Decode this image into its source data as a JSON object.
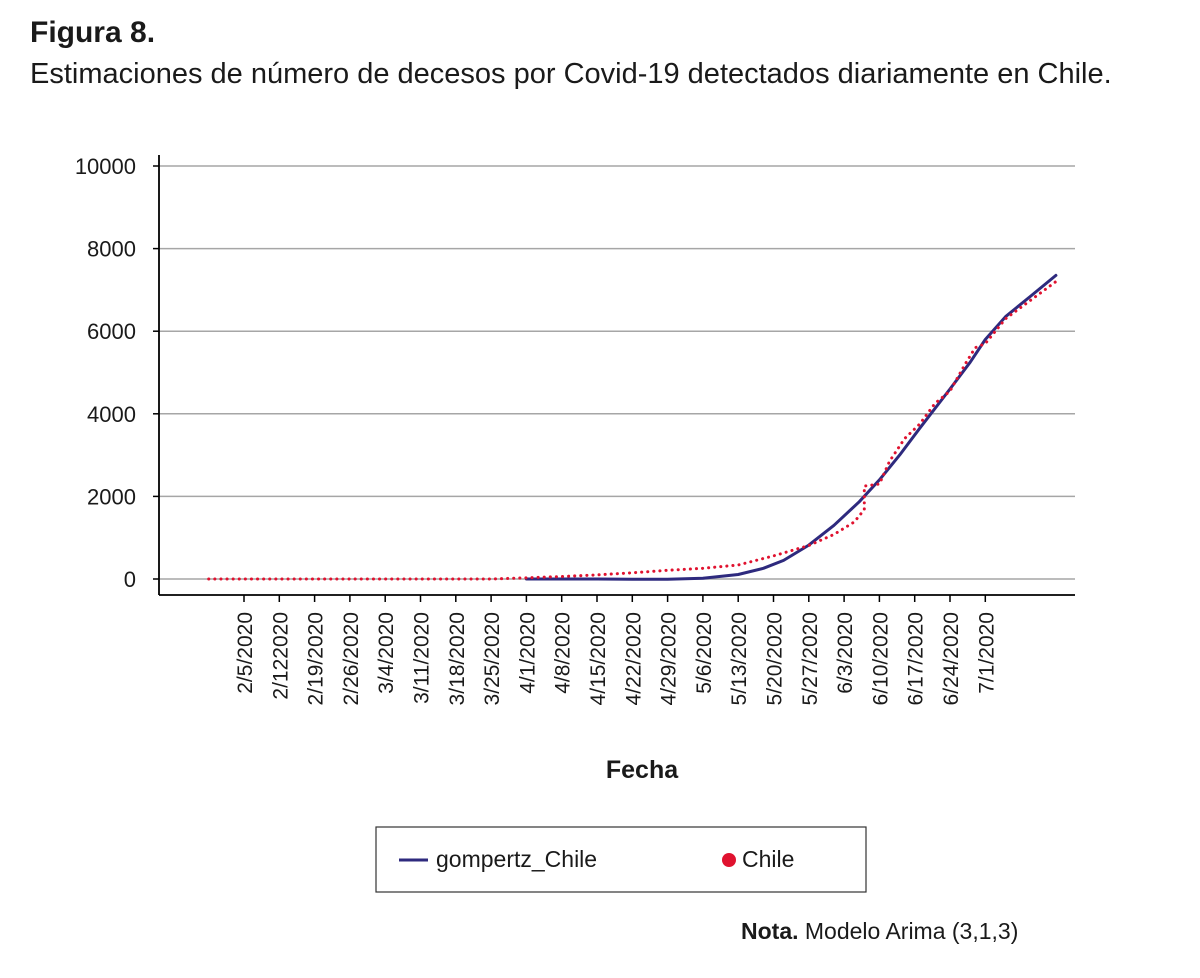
{
  "figure": {
    "label": "Figura 8.",
    "caption": "Estimaciones de número de decesos por Covid-19 detectados diariamente en Chile."
  },
  "note": {
    "prefix": "Nota.",
    "text": " Modelo Arima (3,1,3)"
  },
  "colors": {
    "gompertz": "#2e2a7e",
    "chile": "#e0122f",
    "grid": "#a6a6a6",
    "axis": "#000000"
  },
  "chart_data": {
    "type": "line",
    "title": "",
    "xlabel": "Fecha",
    "ylabel": "",
    "ylim": [
      0,
      10000
    ],
    "yticks": [
      0,
      2000,
      4000,
      6000,
      8000,
      10000
    ],
    "x_tick_labels": [
      "2/5/2020",
      "2/122020",
      "2/19/2020",
      "2/26/2020",
      "3/4/2020",
      "3/11/2020",
      "3/18/2020",
      "3/25/2020",
      "4/1/2020",
      "4/8/2020",
      "4/15/2020",
      "4/22/2020",
      "4/29/2020",
      "5/6/2020",
      "5/13/2020",
      "5/20/2020",
      "5/27/2020",
      "6/3/2020",
      "6/10/2020",
      "6/17/2020",
      "6/24/2020",
      "7/1/2020"
    ],
    "x_range": [
      "2020-01-29",
      "2020-07-20"
    ],
    "grid": true,
    "legend_position": "bottom",
    "series": [
      {
        "name": "gompertz_Chile",
        "style": "solid",
        "points": [
          [
            "2020-04-01",
            0
          ],
          [
            "2020-04-15",
            0
          ],
          [
            "2020-04-22",
            -5
          ],
          [
            "2020-04-29",
            -5
          ],
          [
            "2020-05-06",
            20
          ],
          [
            "2020-05-13",
            110
          ],
          [
            "2020-05-18",
            260
          ],
          [
            "2020-05-22",
            450
          ],
          [
            "2020-05-27",
            820
          ],
          [
            "2020-06-01",
            1300
          ],
          [
            "2020-06-06",
            1870
          ],
          [
            "2020-06-10",
            2400
          ],
          [
            "2020-06-14",
            3000
          ],
          [
            "2020-06-18",
            3650
          ],
          [
            "2020-06-24",
            4600
          ],
          [
            "2020-06-28",
            5250
          ],
          [
            "2020-07-01",
            5800
          ],
          [
            "2020-07-05",
            6350
          ],
          [
            "2020-07-10",
            6850
          ],
          [
            "2020-07-15",
            7350
          ]
        ]
      },
      {
        "name": "Chile",
        "style": "dotted",
        "points": [
          [
            "2020-01-29",
            0
          ],
          [
            "2020-02-19",
            0
          ],
          [
            "2020-03-11",
            0
          ],
          [
            "2020-03-25",
            0
          ],
          [
            "2020-04-01",
            30
          ],
          [
            "2020-04-08",
            60
          ],
          [
            "2020-04-15",
            100
          ],
          [
            "2020-04-22",
            150
          ],
          [
            "2020-04-29",
            210
          ],
          [
            "2020-05-06",
            260
          ],
          [
            "2020-05-13",
            340
          ],
          [
            "2020-05-20",
            560
          ],
          [
            "2020-05-27",
            810
          ],
          [
            "2020-06-01",
            1080
          ],
          [
            "2020-06-05",
            1380
          ],
          [
            "2020-06-07",
            1680
          ],
          [
            "2020-06-07",
            2250
          ],
          [
            "2020-06-10",
            2300
          ],
          [
            "2020-06-12",
            2850
          ],
          [
            "2020-06-15",
            3400
          ],
          [
            "2020-06-18",
            3750
          ],
          [
            "2020-06-21",
            4250
          ],
          [
            "2020-06-24",
            4550
          ],
          [
            "2020-06-27",
            5200
          ],
          [
            "2020-06-29",
            5600
          ],
          [
            "2020-07-01",
            5700
          ],
          [
            "2020-07-05",
            6300
          ],
          [
            "2020-07-10",
            6750
          ],
          [
            "2020-07-15",
            7200
          ]
        ]
      }
    ]
  }
}
